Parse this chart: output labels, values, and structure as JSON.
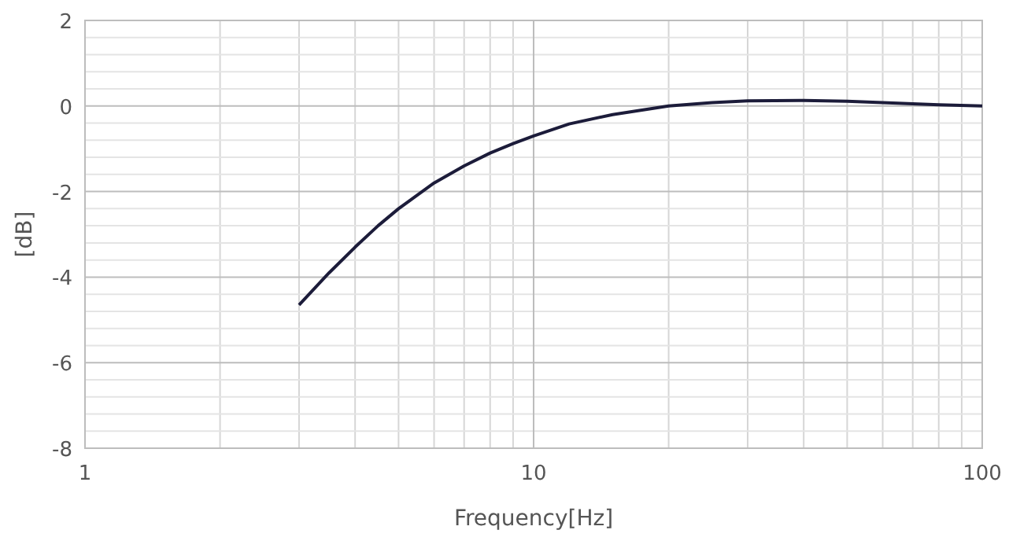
{
  "chart_data": {
    "type": "line",
    "xlabel": "Frequency[Hz]",
    "ylabel": "[dB]",
    "log": "x",
    "grid": true,
    "marker": "none",
    "line_style": "solid",
    "xlim": [
      1,
      100
    ],
    "xticks": [
      1,
      10,
      100
    ],
    "ylim": [
      -8,
      2
    ],
    "yticks": [
      -8,
      -6,
      -4,
      -2,
      0,
      2
    ],
    "x": [
      3,
      3.5,
      4,
      4.5,
      5,
      6,
      7,
      8,
      9,
      10,
      12,
      15,
      20,
      25,
      30,
      40,
      50,
      60,
      70,
      80,
      100
    ],
    "series": [
      {
        "color": "#1c1c3a",
        "values": [
          -4.65,
          -3.9,
          -3.3,
          -2.8,
          -2.4,
          -1.8,
          -1.4,
          -1.1,
          -0.88,
          -0.7,
          -0.42,
          -0.2,
          0.0,
          0.08,
          0.12,
          0.13,
          0.11,
          0.08,
          0.05,
          0.03,
          0.0
        ]
      }
    ]
  }
}
